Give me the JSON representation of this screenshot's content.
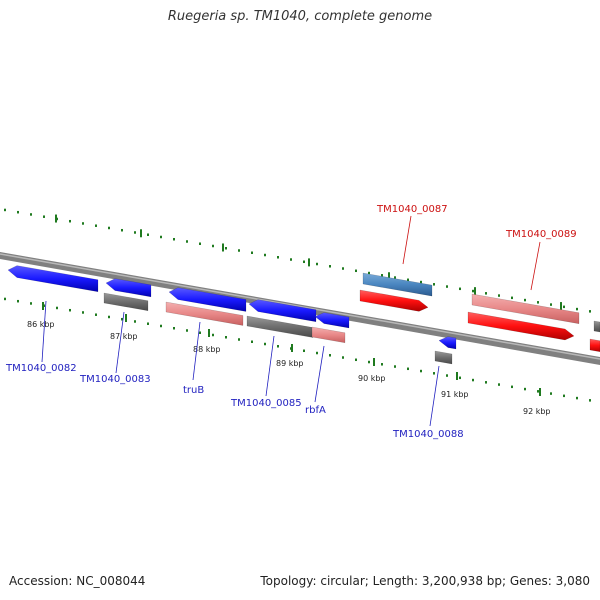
{
  "title": "Ruegeria sp. TM1040, complete genome",
  "footer": {
    "accession": "Accession: NC_008044",
    "info": "Topology: circular; Length: 3,200,938 bp; Genes: 3,080"
  },
  "colors": {
    "forward_gene": "#1a1aff",
    "reverse_gene": "#ff1a1a",
    "forward_label": "#1f1fbf",
    "reverse_label": "#cc1111",
    "rna_forward": "#4a86c0",
    "backbone": "#888888",
    "tick": "#1f7a1f"
  },
  "ticks": [
    {
      "label": "86 kbp"
    },
    {
      "label": "87 kbp"
    },
    {
      "label": "88 kbp"
    },
    {
      "label": "89 kbp"
    },
    {
      "label": "90 kbp"
    },
    {
      "label": "91 kbp"
    },
    {
      "label": "92 kbp"
    }
  ],
  "genes": [
    {
      "name": "TM1040_0082",
      "strand": "forward",
      "labeled": true
    },
    {
      "name": "TM1040_0083",
      "strand": "forward",
      "labeled": true
    },
    {
      "name": "truB",
      "strand": "forward",
      "labeled": true
    },
    {
      "name": "TM1040_0085",
      "strand": "forward",
      "labeled": true
    },
    {
      "name": "rbfA",
      "strand": "forward",
      "labeled": true
    },
    {
      "name": "TM1040_0087",
      "strand": "reverse",
      "labeled": true
    },
    {
      "name": "TM1040_0088",
      "strand": "forward",
      "labeled": true
    },
    {
      "name": "TM1040_0089",
      "strand": "reverse",
      "labeled": true
    }
  ]
}
